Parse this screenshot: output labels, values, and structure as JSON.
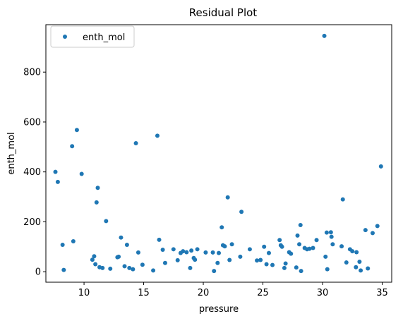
{
  "chart_data": {
    "type": "scatter",
    "title": "Residual Plot",
    "xlabel": "pressure",
    "ylabel": "enth_mol",
    "xlim": [
      6.8,
      35.8
    ],
    "ylim": [
      -42,
      990
    ],
    "xticks": [
      10,
      15,
      20,
      25,
      30,
      35
    ],
    "yticks": [
      0,
      200,
      400,
      600,
      800
    ],
    "grid": false,
    "legend_position": "top-left",
    "series": [
      {
        "name": "enth_mol",
        "color": "#1f77b4",
        "points": [
          [
            7.6,
            400
          ],
          [
            7.8,
            360
          ],
          [
            8.2,
            108
          ],
          [
            8.3,
            7
          ],
          [
            9.0,
            503
          ],
          [
            9.1,
            122
          ],
          [
            9.4,
            568
          ],
          [
            9.8,
            392
          ],
          [
            10.7,
            48
          ],
          [
            10.85,
            62
          ],
          [
            10.95,
            30
          ],
          [
            11.05,
            278
          ],
          [
            11.15,
            336
          ],
          [
            11.3,
            18
          ],
          [
            11.55,
            15
          ],
          [
            11.85,
            203
          ],
          [
            12.2,
            12
          ],
          [
            12.8,
            58
          ],
          [
            12.9,
            60
          ],
          [
            13.1,
            137
          ],
          [
            13.4,
            22
          ],
          [
            13.6,
            108
          ],
          [
            13.8,
            15
          ],
          [
            14.1,
            10
          ],
          [
            14.35,
            515
          ],
          [
            14.55,
            77
          ],
          [
            14.9,
            28
          ],
          [
            15.8,
            5
          ],
          [
            16.15,
            545
          ],
          [
            16.3,
            128
          ],
          [
            16.6,
            88
          ],
          [
            16.8,
            35
          ],
          [
            17.5,
            90
          ],
          [
            17.85,
            46
          ],
          [
            18.1,
            75
          ],
          [
            18.3,
            82
          ],
          [
            18.6,
            78
          ],
          [
            18.9,
            15
          ],
          [
            19.0,
            85
          ],
          [
            19.2,
            55
          ],
          [
            19.3,
            48
          ],
          [
            19.5,
            90
          ],
          [
            20.2,
            77
          ],
          [
            20.8,
            77
          ],
          [
            20.9,
            3
          ],
          [
            21.2,
            35
          ],
          [
            21.3,
            75
          ],
          [
            21.55,
            178
          ],
          [
            21.65,
            106
          ],
          [
            21.8,
            102
          ],
          [
            22.05,
            298
          ],
          [
            22.2,
            47
          ],
          [
            22.4,
            110
          ],
          [
            23.1,
            60
          ],
          [
            23.2,
            240
          ],
          [
            23.9,
            90
          ],
          [
            24.5,
            45
          ],
          [
            24.8,
            47
          ],
          [
            25.1,
            100
          ],
          [
            25.3,
            30
          ],
          [
            25.5,
            75
          ],
          [
            25.8,
            27
          ],
          [
            26.4,
            127
          ],
          [
            26.5,
            106
          ],
          [
            26.6,
            100
          ],
          [
            26.8,
            15
          ],
          [
            26.9,
            33
          ],
          [
            27.2,
            78
          ],
          [
            27.35,
            72
          ],
          [
            27.8,
            17
          ],
          [
            27.9,
            145
          ],
          [
            28.05,
            110
          ],
          [
            28.15,
            187
          ],
          [
            28.2,
            3
          ],
          [
            28.5,
            95
          ],
          [
            28.7,
            90
          ],
          [
            28.9,
            92
          ],
          [
            29.2,
            95
          ],
          [
            29.5,
            127
          ],
          [
            30.15,
            945
          ],
          [
            30.25,
            60
          ],
          [
            30.35,
            157
          ],
          [
            30.4,
            10
          ],
          [
            30.7,
            158
          ],
          [
            30.75,
            140
          ],
          [
            30.85,
            110
          ],
          [
            31.6,
            102
          ],
          [
            31.7,
            290
          ],
          [
            32.0,
            37
          ],
          [
            32.3,
            90
          ],
          [
            32.5,
            82
          ],
          [
            32.8,
            18
          ],
          [
            32.85,
            78
          ],
          [
            33.1,
            40
          ],
          [
            33.2,
            5
          ],
          [
            33.6,
            167
          ],
          [
            33.8,
            13
          ],
          [
            34.2,
            155
          ],
          [
            34.6,
            183
          ],
          [
            34.9,
            422
          ]
        ]
      }
    ]
  }
}
